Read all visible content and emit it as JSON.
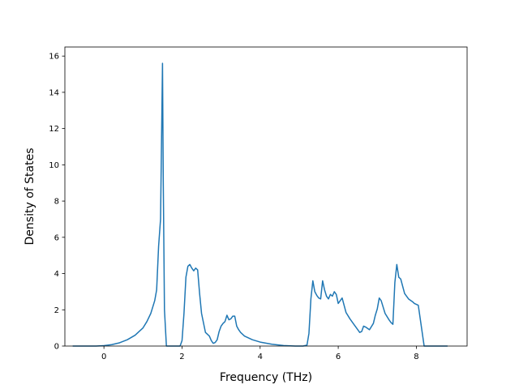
{
  "chart_data": {
    "type": "line",
    "title": "",
    "xlabel": "Frequency (THz)",
    "ylabel": "Density of States",
    "xlim": [
      -1.0,
      9.3
    ],
    "ylim": [
      0,
      16.5
    ],
    "xticks": [
      0,
      2,
      4,
      6,
      8
    ],
    "yticks": [
      0,
      2,
      4,
      6,
      8,
      10,
      12,
      14,
      16
    ],
    "grid": false,
    "legend": "none",
    "line_color": "#1f77b4",
    "series": [
      {
        "x": [
          -0.8,
          -0.5,
          -0.2,
          0.0,
          0.2,
          0.4,
          0.6,
          0.8,
          0.9,
          1.0,
          1.1,
          1.2,
          1.3,
          1.35,
          1.4,
          1.45,
          1.5,
          1.52,
          1.55,
          1.6,
          1.8,
          1.95,
          2.0,
          2.05,
          2.1,
          2.15,
          2.2,
          2.25,
          2.3,
          2.35,
          2.4,
          2.45,
          2.5,
          2.6,
          2.65,
          2.7,
          2.75,
          2.8,
          2.85,
          2.9,
          2.95,
          3.0,
          3.05,
          3.1,
          3.15,
          3.2,
          3.25,
          3.3,
          3.35,
          3.4,
          3.45,
          3.5,
          3.6,
          3.8,
          4.0,
          4.3,
          4.6,
          4.9,
          5.1,
          5.2,
          5.25,
          5.3,
          5.35,
          5.4,
          5.45,
          5.5,
          5.55,
          5.6,
          5.65,
          5.7,
          5.75,
          5.8,
          5.85,
          5.9,
          5.95,
          6.0,
          6.05,
          6.1,
          6.2,
          6.3,
          6.4,
          6.5,
          6.55,
          6.6,
          6.65,
          6.7,
          6.8,
          6.9,
          6.95,
          7.0,
          7.05,
          7.1,
          7.2,
          7.3,
          7.35,
          7.4,
          7.45,
          7.5,
          7.55,
          7.6,
          7.7,
          7.8,
          7.9,
          7.95,
          8.0,
          8.05,
          8.2,
          8.5,
          8.8
        ],
        "values": [
          0,
          0,
          0,
          0.02,
          0.08,
          0.18,
          0.35,
          0.6,
          0.8,
          1.0,
          1.35,
          1.8,
          2.5,
          3.1,
          5.5,
          7.0,
          15.6,
          9.0,
          2.0,
          0.0,
          0.0,
          0.0,
          0.3,
          1.8,
          3.8,
          4.4,
          4.5,
          4.3,
          4.15,
          4.3,
          4.2,
          2.9,
          1.8,
          0.75,
          0.65,
          0.55,
          0.3,
          0.15,
          0.2,
          0.35,
          0.8,
          1.1,
          1.25,
          1.35,
          1.7,
          1.45,
          1.5,
          1.65,
          1.65,
          1.1,
          0.9,
          0.75,
          0.55,
          0.35,
          0.22,
          0.1,
          0.03,
          0.0,
          0.0,
          0.05,
          0.7,
          2.6,
          3.6,
          3.0,
          2.8,
          2.65,
          2.6,
          3.6,
          3.1,
          2.75,
          2.6,
          2.85,
          2.75,
          3.0,
          2.85,
          2.35,
          2.5,
          2.65,
          1.85,
          1.5,
          1.2,
          0.9,
          0.75,
          0.8,
          1.1,
          1.05,
          0.9,
          1.25,
          1.7,
          2.05,
          2.65,
          2.5,
          1.8,
          1.45,
          1.3,
          1.2,
          3.5,
          4.5,
          3.8,
          3.7,
          2.9,
          2.6,
          2.45,
          2.35,
          2.3,
          2.25,
          0.0,
          0.0,
          0.0
        ]
      }
    ]
  }
}
